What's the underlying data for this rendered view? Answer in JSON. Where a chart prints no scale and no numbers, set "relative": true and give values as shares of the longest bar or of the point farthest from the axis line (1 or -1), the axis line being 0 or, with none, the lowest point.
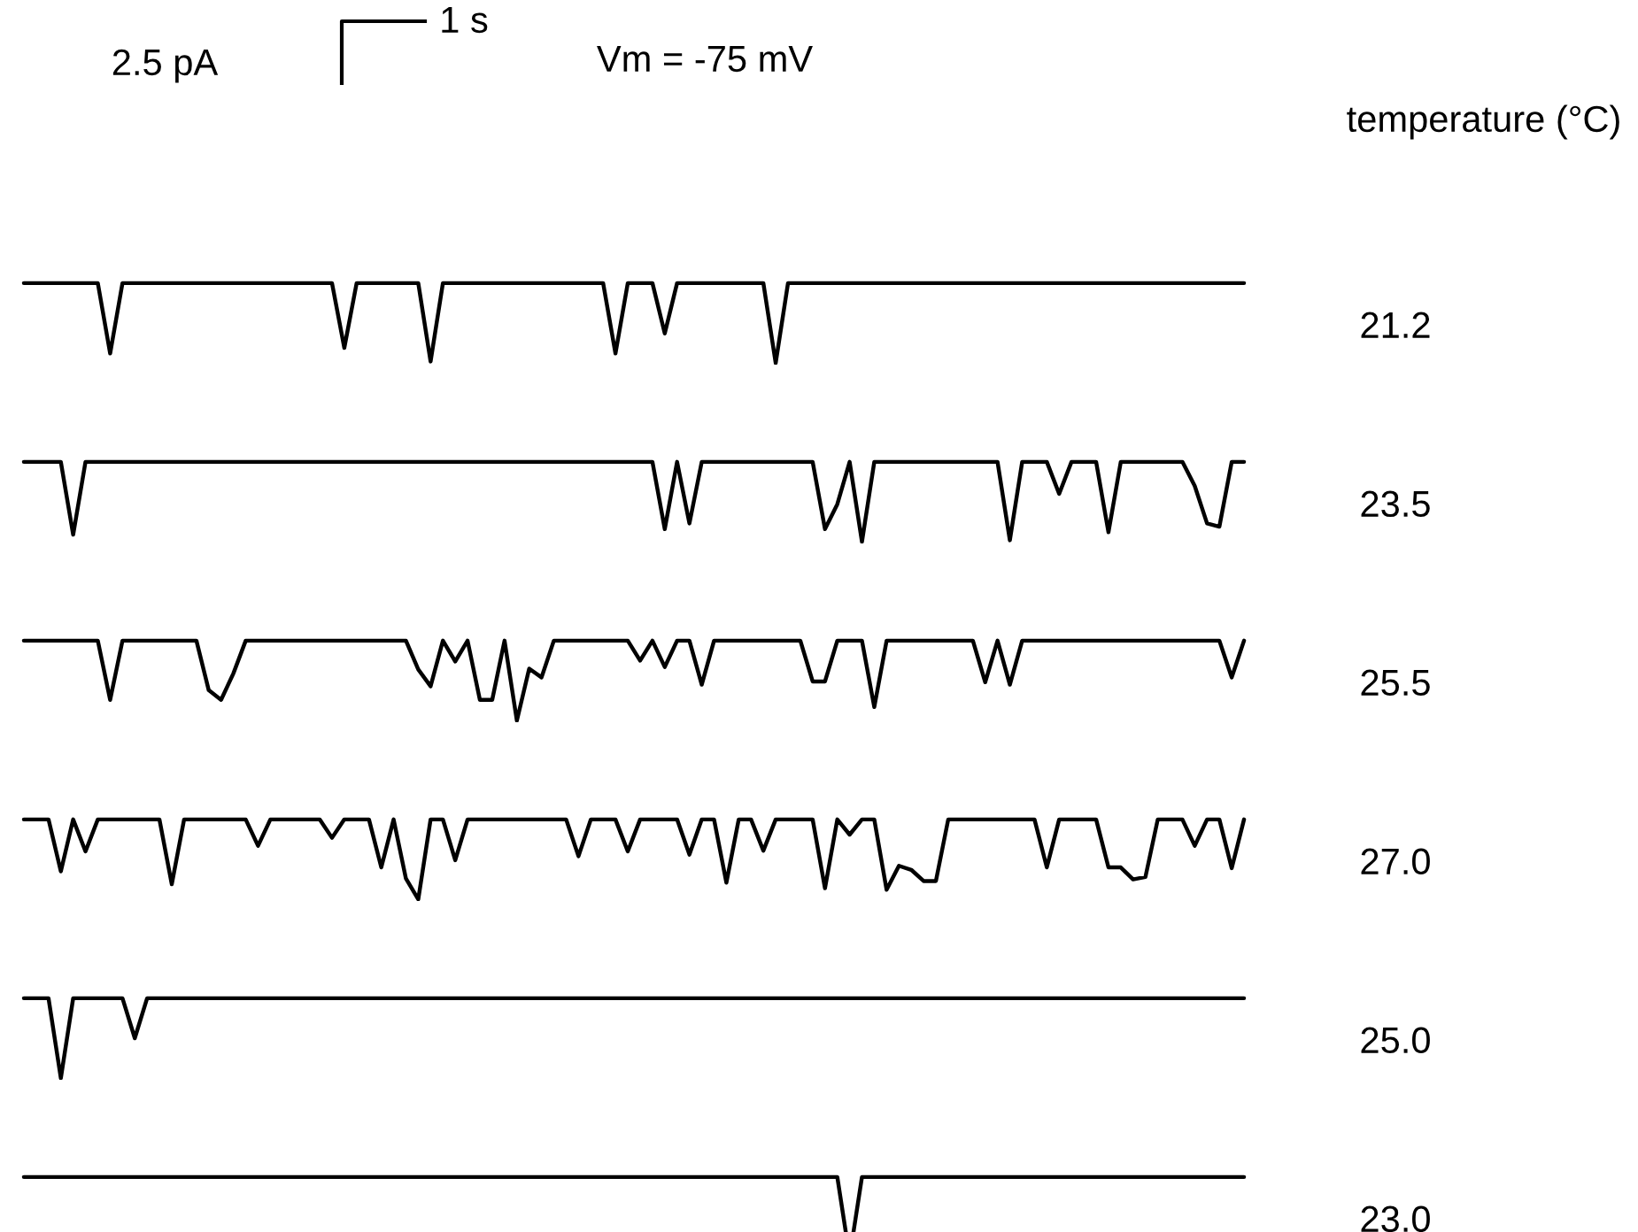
{
  "chart_data": [
    {
      "type": "line",
      "relative": true,
      "annotations": [
        "2.5 pA",
        "1 s",
        "Vm = -75 mV",
        "temperature (°C)"
      ],
      "categories": [
        null,
        null,
        null,
        null,
        null,
        null,
        null,
        null,
        null,
        null,
        null,
        null,
        null,
        null,
        null,
        null,
        null,
        null,
        null,
        null,
        null,
        null,
        null,
        null,
        null,
        null,
        null,
        null,
        null,
        null,
        null,
        null,
        null,
        null,
        null,
        null,
        null,
        null,
        null,
        null,
        null,
        null,
        null,
        null,
        null,
        null,
        null,
        null,
        null,
        null,
        null,
        null,
        null,
        null,
        null,
        null,
        null,
        null,
        null,
        null,
        null,
        null,
        null,
        null,
        null,
        null,
        null,
        null,
        null,
        null,
        null,
        null,
        null,
        null,
        null,
        null,
        null,
        null,
        null,
        null,
        null,
        null,
        null,
        null,
        null,
        null,
        null,
        null,
        null,
        null,
        null,
        null,
        null,
        null,
        null,
        null,
        null,
        null,
        null,
        null
      ],
      "series": [
        {
          "name": "21.2",
          "color": "#000000",
          "values": [
            1,
            1,
            1,
            1,
            1,
            1,
            1,
            0.12,
            1,
            1,
            1,
            1,
            1,
            1,
            1,
            1,
            1,
            1,
            1,
            1,
            1,
            1,
            1,
            1,
            1,
            1,
            0.19,
            1,
            1,
            1,
            1,
            1,
            1,
            0.02,
            1,
            1,
            1,
            1,
            1,
            1,
            1,
            1,
            1,
            1,
            1,
            1,
            1,
            1,
            0.12,
            1,
            1,
            1,
            0.37,
            1,
            1,
            1,
            1,
            1,
            1,
            1,
            1,
            0,
            1,
            1,
            1,
            1,
            1,
            1,
            1,
            1,
            1,
            1,
            1,
            1,
            1,
            1,
            1,
            1,
            1,
            1,
            1,
            1,
            1,
            1,
            1,
            1,
            1,
            1,
            1,
            1,
            1,
            1,
            1,
            1,
            1,
            1,
            1,
            1,
            1,
            1
          ]
        }
      ]
    },
    {
      "type": "line",
      "relative": true,
      "categories": [
        null,
        null,
        null,
        null,
        null,
        null,
        null,
        null,
        null,
        null,
        null,
        null,
        null,
        null,
        null,
        null,
        null,
        null,
        null,
        null,
        null,
        null,
        null,
        null,
        null,
        null,
        null,
        null,
        null,
        null,
        null,
        null,
        null,
        null,
        null,
        null,
        null,
        null,
        null,
        null,
        null,
        null,
        null,
        null,
        null,
        null,
        null,
        null,
        null,
        null,
        null,
        null,
        null,
        null,
        null,
        null,
        null,
        null,
        null,
        null,
        null,
        null,
        null,
        null,
        null,
        null,
        null,
        null,
        null,
        null,
        null,
        null,
        null,
        null,
        null,
        null,
        null,
        null,
        null,
        null,
        null,
        null,
        null,
        null,
        null,
        null,
        null,
        null,
        null,
        null,
        null,
        null,
        null,
        null,
        null,
        null,
        null,
        null,
        null,
        null
      ],
      "series": [
        {
          "name": "23.5",
          "color": "#000000",
          "values": [
            1,
            1,
            1,
            1,
            0.09,
            1,
            1,
            1,
            1,
            1,
            1,
            1,
            1,
            1,
            1,
            1,
            1,
            1,
            1,
            1,
            1,
            1,
            1,
            1,
            1,
            1,
            1,
            1,
            1,
            1,
            1,
            1,
            1,
            1,
            1,
            1,
            1,
            1,
            1,
            1,
            1,
            1,
            1,
            1,
            1,
            1,
            1,
            1,
            1,
            1,
            1,
            1,
            0.16,
            1,
            0.23,
            1,
            1,
            1,
            1,
            1,
            1,
            1,
            1,
            1,
            1,
            0.16,
            0.47,
            1,
            0,
            1,
            1,
            1,
            1,
            1,
            1,
            1,
            1,
            1,
            1,
            1,
            0.02,
            1,
            1,
            1,
            0.6,
            1,
            1,
            1,
            0.12,
            1,
            1,
            1,
            1,
            1,
            1,
            0.7,
            0.23,
            0.19,
            1,
            1
          ]
        }
      ]
    },
    {
      "type": "line",
      "relative": true,
      "categories": [
        null,
        null,
        null,
        null,
        null,
        null,
        null,
        null,
        null,
        null,
        null,
        null,
        null,
        null,
        null,
        null,
        null,
        null,
        null,
        null,
        null,
        null,
        null,
        null,
        null,
        null,
        null,
        null,
        null,
        null,
        null,
        null,
        null,
        null,
        null,
        null,
        null,
        null,
        null,
        null,
        null,
        null,
        null,
        null,
        null,
        null,
        null,
        null,
        null,
        null,
        null,
        null,
        null,
        null,
        null,
        null,
        null,
        null,
        null,
        null,
        null,
        null,
        null,
        null,
        null,
        null,
        null,
        null,
        null,
        null,
        null,
        null,
        null,
        null,
        null,
        null,
        null,
        null,
        null,
        null,
        null,
        null,
        null,
        null,
        null,
        null,
        null,
        null,
        null,
        null,
        null,
        null,
        null,
        null,
        null,
        null,
        null,
        null,
        null,
        null
      ],
      "series": [
        {
          "name": "25.5",
          "color": "#000000",
          "values": [
            1,
            1,
            1,
            1,
            1,
            1,
            1,
            0.26,
            1,
            1,
            1,
            1,
            1,
            1,
            1,
            0.38,
            0.26,
            0.59,
            1,
            1,
            1,
            1,
            1,
            1,
            1,
            1,
            1,
            1,
            1,
            1,
            1,
            1,
            0.64,
            0.43,
            1,
            0.74,
            1,
            0.26,
            0.26,
            1,
            0,
            0.65,
            0.54,
            1,
            1,
            1,
            1,
            1,
            1,
            1,
            0.75,
            1,
            0.67,
            1,
            1,
            0.45,
            1,
            1,
            1,
            1,
            1,
            1,
            1,
            1,
            0.49,
            0.49,
            1,
            1,
            1,
            0.17,
            1,
            1,
            1,
            1,
            1,
            1,
            1,
            1,
            0.48,
            1,
            0.45,
            1,
            1,
            1,
            1,
            1,
            1,
            1,
            1,
            1,
            1,
            1,
            1,
            1,
            1,
            1,
            1,
            1,
            0.54,
            1
          ]
        }
      ]
    },
    {
      "type": "line",
      "relative": true,
      "categories": [
        null,
        null,
        null,
        null,
        null,
        null,
        null,
        null,
        null,
        null,
        null,
        null,
        null,
        null,
        null,
        null,
        null,
        null,
        null,
        null,
        null,
        null,
        null,
        null,
        null,
        null,
        null,
        null,
        null,
        null,
        null,
        null,
        null,
        null,
        null,
        null,
        null,
        null,
        null,
        null,
        null,
        null,
        null,
        null,
        null,
        null,
        null,
        null,
        null,
        null,
        null,
        null,
        null,
        null,
        null,
        null,
        null,
        null,
        null,
        null,
        null,
        null,
        null,
        null,
        null,
        null,
        null,
        null,
        null,
        null,
        null,
        null,
        null,
        null,
        null,
        null,
        null,
        null,
        null,
        null,
        null,
        null,
        null,
        null,
        null,
        null,
        null,
        null,
        null,
        null,
        null,
        null,
        null,
        null,
        null,
        null,
        null,
        null,
        null,
        null
      ],
      "series": [
        {
          "name": "27.0",
          "color": "#000000",
          "values": [
            1,
            1,
            1,
            0.35,
            1,
            0.6,
            1,
            1,
            1,
            1,
            1,
            1,
            0.19,
            1,
            1,
            1,
            1,
            1,
            1,
            0.67,
            1,
            1,
            1,
            1,
            1,
            0.77,
            1,
            1,
            1,
            0.4,
            1,
            0.26,
            0,
            1,
            1,
            0.49,
            1,
            1,
            1,
            1,
            1,
            1,
            1,
            1,
            1,
            0.54,
            1,
            1,
            1,
            0.6,
            1,
            1,
            1,
            1,
            0.56,
            1,
            1,
            0.21,
            1,
            1,
            0.61,
            1,
            1,
            1,
            1,
            0.14,
            1,
            0.81,
            1,
            1,
            0.12,
            0.42,
            0.37,
            0.23,
            0.23,
            1,
            1,
            1,
            1,
            1,
            1,
            1,
            1,
            0.4,
            1,
            1,
            1,
            1,
            0.4,
            0.4,
            0.25,
            0.28,
            1,
            1,
            1,
            0.67,
            1,
            1,
            0.39,
            1
          ]
        }
      ]
    },
    {
      "type": "line",
      "relative": true,
      "categories": [
        null,
        null,
        null,
        null,
        null,
        null,
        null,
        null,
        null,
        null,
        null,
        null,
        null,
        null,
        null,
        null,
        null,
        null,
        null,
        null,
        null,
        null,
        null,
        null,
        null,
        null,
        null,
        null,
        null,
        null,
        null,
        null,
        null,
        null,
        null,
        null,
        null,
        null,
        null,
        null,
        null,
        null,
        null,
        null,
        null,
        null,
        null,
        null,
        null,
        null,
        null,
        null,
        null,
        null,
        null,
        null,
        null,
        null,
        null,
        null,
        null,
        null,
        null,
        null,
        null,
        null,
        null,
        null,
        null,
        null,
        null,
        null,
        null,
        null,
        null,
        null,
        null,
        null,
        null,
        null,
        null,
        null,
        null,
        null,
        null,
        null,
        null,
        null,
        null,
        null,
        null,
        null,
        null,
        null,
        null,
        null,
        null,
        null,
        null,
        null
      ],
      "series": [
        {
          "name": "25.0",
          "color": "#000000",
          "values": [
            1,
            1,
            1,
            0,
            1,
            1,
            1,
            1,
            1,
            0.5,
            1,
            1,
            1,
            1,
            1,
            1,
            1,
            1,
            1,
            1,
            1,
            1,
            1,
            1,
            1,
            1,
            1,
            1,
            1,
            1,
            1,
            1,
            1,
            1,
            1,
            1,
            1,
            1,
            1,
            1,
            1,
            1,
            1,
            1,
            1,
            1,
            1,
            1,
            1,
            1,
            1,
            1,
            1,
            1,
            1,
            1,
            1,
            1,
            1,
            1,
            1,
            1,
            1,
            1,
            1,
            1,
            1,
            1,
            1,
            1,
            1,
            1,
            1,
            1,
            1,
            1,
            1,
            1,
            1,
            1,
            1,
            1,
            1,
            1,
            1,
            1,
            1,
            1,
            1,
            1,
            1,
            1,
            1,
            1,
            1,
            1,
            1,
            1,
            1,
            1
          ]
        }
      ]
    },
    {
      "type": "line",
      "relative": true,
      "categories": [
        null,
        null,
        null,
        null,
        null,
        null,
        null,
        null,
        null,
        null,
        null,
        null,
        null,
        null,
        null,
        null,
        null,
        null,
        null,
        null,
        null,
        null,
        null,
        null,
        null,
        null,
        null,
        null,
        null,
        null,
        null,
        null,
        null,
        null,
        null,
        null,
        null,
        null,
        null,
        null,
        null,
        null,
        null,
        null,
        null,
        null,
        null,
        null,
        null,
        null,
        null,
        null,
        null,
        null,
        null,
        null,
        null,
        null,
        null,
        null,
        null,
        null,
        null,
        null,
        null,
        null,
        null,
        null,
        null,
        null,
        null,
        null,
        null,
        null,
        null,
        null,
        null,
        null,
        null,
        null,
        null,
        null,
        null,
        null,
        null,
        null,
        null,
        null,
        null,
        null,
        null,
        null,
        null,
        null,
        null,
        null,
        null,
        null,
        null,
        null
      ],
      "series": [
        {
          "name": "23.0",
          "color": "#000000",
          "values": [
            1,
            1,
            1,
            1,
            1,
            1,
            1,
            1,
            1,
            1,
            1,
            1,
            1,
            1,
            1,
            1,
            1,
            1,
            1,
            1,
            1,
            1,
            1,
            1,
            1,
            1,
            1,
            1,
            1,
            1,
            1,
            1,
            1,
            1,
            1,
            1,
            1,
            1,
            1,
            1,
            1,
            1,
            1,
            1,
            1,
            1,
            1,
            1,
            1,
            1,
            1,
            1,
            1,
            1,
            1,
            1,
            1,
            1,
            1,
            1,
            1,
            1,
            1,
            1,
            1,
            1,
            1,
            0,
            1,
            1,
            1,
            1,
            1,
            1,
            1,
            1,
            1,
            1,
            1,
            1,
            1,
            1,
            1,
            1,
            1,
            1,
            1,
            1,
            1,
            1,
            1,
            1,
            1,
            1,
            1,
            1,
            1,
            1,
            1,
            1
          ]
        }
      ]
    }
  ]
}
